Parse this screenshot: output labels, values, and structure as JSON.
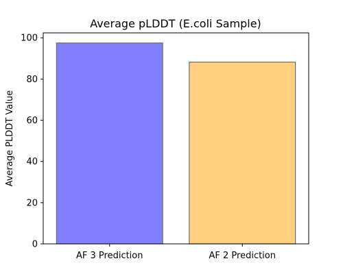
{
  "chart_data": {
    "type": "bar",
    "title": "Average pLDDT (E.coli Sample)",
    "xlabel": "",
    "ylabel": "Average PLDDT Value",
    "categories": [
      "AF 3 Prediction",
      "AF 2 Prediction"
    ],
    "values": [
      97.5,
      88.2
    ],
    "bar_colors": [
      "#8080ff",
      "#ffd080"
    ],
    "bar_edge_color": "#6b6b6b",
    "ylim": [
      0,
      102.4
    ],
    "yticks": [
      0,
      20,
      40,
      60,
      80,
      100
    ],
    "grid": false,
    "legend": "none"
  }
}
